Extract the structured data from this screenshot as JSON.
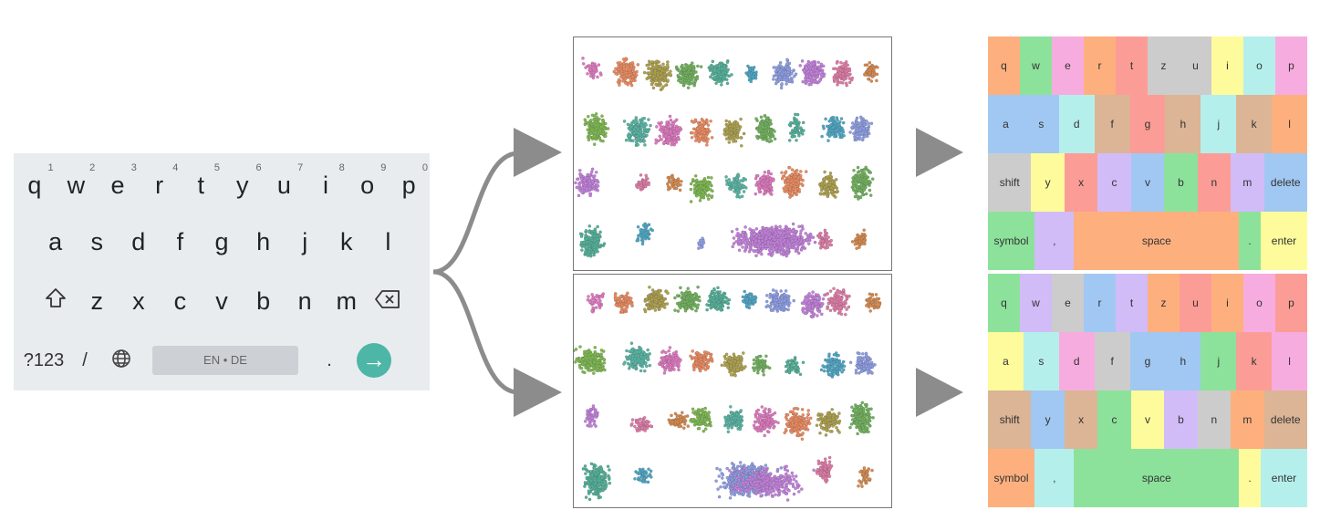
{
  "keyboard": {
    "numbers": [
      "1",
      "2",
      "3",
      "4",
      "5",
      "6",
      "7",
      "8",
      "9",
      "0"
    ],
    "row1": [
      "q",
      "w",
      "e",
      "r",
      "t",
      "y",
      "u",
      "i",
      "o",
      "p"
    ],
    "row2": [
      "a",
      "s",
      "d",
      "f",
      "g",
      "h",
      "j",
      "k",
      "l"
    ],
    "row3": [
      "z",
      "x",
      "c",
      "v",
      "b",
      "n",
      "m"
    ],
    "shift_icon": "shift-arrow-icon",
    "backspace_icon": "backspace-icon",
    "symbol_label": "?123",
    "slash_label": "/",
    "globe_icon": "globe-icon",
    "space_label": "EN • DE",
    "period_label": ".",
    "enter_icon": "arrow-right-icon",
    "enter_color": "#4db6a6"
  },
  "colors": {
    "orange": "#fdb07e",
    "green": "#8de29b",
    "pink": "#f7acdf",
    "red": "#fb9d96",
    "gray": "#cccccc",
    "yellow": "#fdfb9b",
    "cyan": "#b5efec",
    "blue": "#a1c8f2",
    "tan": "#dbb595",
    "purple": "#d1bcf8"
  },
  "layouts": [
    {
      "rows": [
        [
          [
            "q",
            "orange"
          ],
          [
            "w",
            "green"
          ],
          [
            "e",
            "pink"
          ],
          [
            "r",
            "orange"
          ],
          [
            "t",
            "red"
          ],
          [
            "z",
            "gray"
          ],
          [
            "u",
            "gray"
          ],
          [
            "i",
            "yellow"
          ],
          [
            "o",
            "cyan"
          ],
          [
            "p",
            "pink"
          ]
        ],
        [
          [
            "a",
            "blue"
          ],
          [
            "s",
            "blue"
          ],
          [
            "d",
            "cyan"
          ],
          [
            "f",
            "tan"
          ],
          [
            "g",
            "red"
          ],
          [
            "h",
            "tan"
          ],
          [
            "j",
            "cyan"
          ],
          [
            "k",
            "tan"
          ],
          [
            "l",
            "orange"
          ]
        ],
        [
          [
            "shift",
            "gray"
          ],
          [
            "y",
            "yellow"
          ],
          [
            "x",
            "red"
          ],
          [
            "c",
            "purple"
          ],
          [
            "v",
            "blue"
          ],
          [
            "b",
            "green"
          ],
          [
            "n",
            "red"
          ],
          [
            "m",
            "purple"
          ],
          [
            "delete",
            "blue"
          ]
        ],
        [
          [
            "symbol",
            "green"
          ],
          [
            ",",
            "purple"
          ],
          [
            "space",
            "orange"
          ],
          [
            ".",
            "green"
          ],
          [
            "enter",
            "yellow"
          ]
        ]
      ]
    },
    {
      "rows": [
        [
          [
            "q",
            "green"
          ],
          [
            "w",
            "purple"
          ],
          [
            "e",
            "gray"
          ],
          [
            "r",
            "blue"
          ],
          [
            "t",
            "purple"
          ],
          [
            "z",
            "orange"
          ],
          [
            "u",
            "red"
          ],
          [
            "i",
            "orange"
          ],
          [
            "o",
            "pink"
          ],
          [
            "p",
            "red"
          ]
        ],
        [
          [
            "a",
            "yellow"
          ],
          [
            "s",
            "cyan"
          ],
          [
            "d",
            "pink"
          ],
          [
            "f",
            "gray"
          ],
          [
            "g",
            "blue"
          ],
          [
            "h",
            "blue"
          ],
          [
            "j",
            "green"
          ],
          [
            "k",
            "red"
          ],
          [
            "l",
            "pink"
          ]
        ],
        [
          [
            "shift",
            "tan"
          ],
          [
            "y",
            "blue"
          ],
          [
            "x",
            "tan"
          ],
          [
            "c",
            "green"
          ],
          [
            "v",
            "yellow"
          ],
          [
            "b",
            "purple"
          ],
          [
            "n",
            "gray"
          ],
          [
            "m",
            "orange"
          ],
          [
            "delete",
            "tan"
          ]
        ],
        [
          [
            "symbol",
            "orange"
          ],
          [
            ",",
            "cyan"
          ],
          [
            "space",
            "green"
          ],
          [
            ".",
            "yellow"
          ],
          [
            "enter",
            "cyan"
          ]
        ]
      ]
    }
  ],
  "arrow_color": "#8c8c8c"
}
